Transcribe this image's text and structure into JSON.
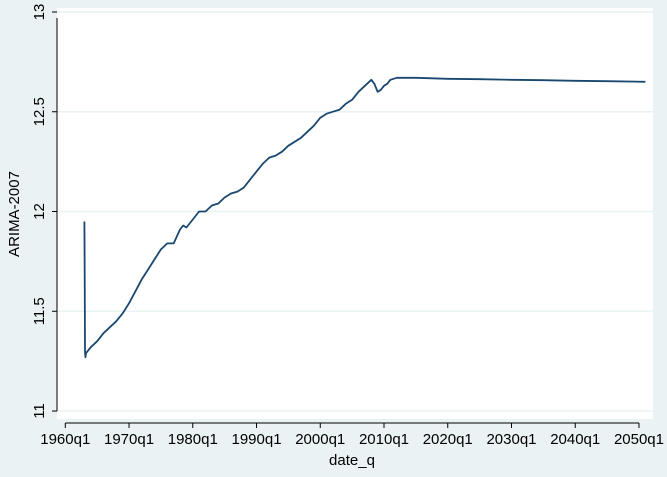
{
  "chart_data": {
    "type": "line",
    "title": "",
    "xlabel": "date_q",
    "ylabel": "ARIMA-2007",
    "x_ticks": [
      "1960q1",
      "1970q1",
      "1980q1",
      "1990q1",
      "2000q1",
      "2010q1",
      "2020q1",
      "2030q1",
      "2040q1",
      "2050q1"
    ],
    "x_tick_values": [
      1960,
      1970,
      1980,
      1990,
      2000,
      2010,
      2020,
      2030,
      2040,
      2050
    ],
    "y_ticks": [
      "11",
      "11.5",
      "12",
      "12.5",
      "13"
    ],
    "y_tick_values": [
      11,
      11.5,
      12,
      12.5,
      13
    ],
    "xlim": [
      1958.7,
      2052.2
    ],
    "ylim": [
      10.96,
      13.02
    ],
    "grid": true,
    "colors": {
      "background": "#eaf2f3",
      "plot_area": "#ffffff",
      "line": "#1a476f",
      "grid": "#eaf2f3",
      "axis": "#000000"
    },
    "series": [
      {
        "x": [
          1963.0,
          1963.05,
          1963.1,
          1963.15,
          1963.25,
          1963.5,
          1964.0,
          1965.0,
          1966.0,
          1967.0,
          1968.0,
          1969.0,
          1970.0,
          1971.0,
          1972.0,
          1973.0,
          1974.0,
          1975.0,
          1976.0,
          1977.0,
          1978.0,
          1978.5,
          1979.0,
          1980.0,
          1981.0,
          1982.0,
          1983.0,
          1984.0,
          1985.0,
          1986.0,
          1987.0,
          1988.0,
          1989.0,
          1990.0,
          1991.0,
          1992.0,
          1993.0,
          1994.0,
          1995.0,
          1996.0,
          1997.0,
          1998.0,
          1999.0,
          2000.0,
          2001.0,
          2002.0,
          2003.0,
          2004.0,
          2005.0,
          2006.0,
          2007.0,
          2008.0,
          2008.5,
          2009.0,
          2009.5,
          2010.0,
          2010.5,
          2011.0,
          2012.0,
          2015.0,
          2020.0,
          2025.0,
          2030.0,
          2035.0,
          2040.0,
          2045.0,
          2051.0
        ],
        "y": [
          11.95,
          11.68,
          11.3,
          11.27,
          11.29,
          11.3,
          11.32,
          11.35,
          11.39,
          11.42,
          11.45,
          11.49,
          11.54,
          11.6,
          11.66,
          11.71,
          11.76,
          11.81,
          11.84,
          11.84,
          11.91,
          11.93,
          11.92,
          11.96,
          12.0,
          12.0,
          12.03,
          12.04,
          12.07,
          12.09,
          12.1,
          12.12,
          12.16,
          12.2,
          12.24,
          12.27,
          12.28,
          12.3,
          12.33,
          12.35,
          12.37,
          12.4,
          12.43,
          12.47,
          12.49,
          12.5,
          12.51,
          12.54,
          12.56,
          12.6,
          12.63,
          12.66,
          12.64,
          12.6,
          12.61,
          12.63,
          12.64,
          12.66,
          12.67,
          12.67,
          12.665,
          12.663,
          12.66,
          12.658,
          12.655,
          12.653,
          12.65
        ]
      }
    ]
  }
}
